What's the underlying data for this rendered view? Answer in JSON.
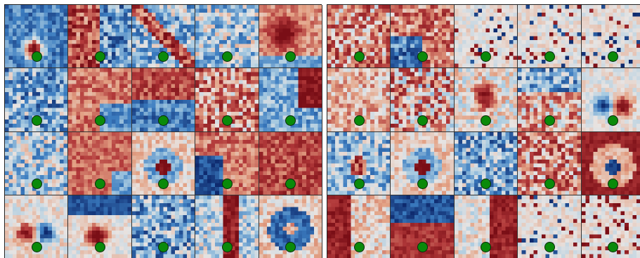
{
  "palette": {
    "deep_red": "#7a0e16",
    "red": "#b2393a",
    "light_red": "#e3a285",
    "neutral": "#e8e4e2",
    "light_blue": "#a9cbe1",
    "blue": "#3b7cc0",
    "deep_blue": "#0e2a6e",
    "marker_green": "#0a8a0a"
  },
  "panels": [
    {
      "id": "left",
      "rows": 4,
      "cols": 5,
      "tiles": [
        {
          "pattern": "blue-field-red-spot"
        },
        {
          "pattern": "mixed-red-blue"
        },
        {
          "pattern": "blue-noise-red-streak"
        },
        {
          "pattern": "light-blue-noise"
        },
        {
          "pattern": "red-blob"
        },
        {
          "pattern": "blue-noise"
        },
        {
          "pattern": "red-field-blue-streak"
        },
        {
          "pattern": "red-blue-band"
        },
        {
          "pattern": "red-noise"
        },
        {
          "pattern": "blue-red-mixed"
        },
        {
          "pattern": "light-blue-noise"
        },
        {
          "pattern": "red-field-blue-corner"
        },
        {
          "pattern": "center-red-blue-ring"
        },
        {
          "pattern": "blue-spot-red"
        },
        {
          "pattern": "red-field"
        },
        {
          "pattern": "red-spot-blue"
        },
        {
          "pattern": "blue-top-red-center"
        },
        {
          "pattern": "blue-noise"
        },
        {
          "pattern": "red-streak-blue"
        },
        {
          "pattern": "blue-ring"
        }
      ]
    },
    {
      "id": "right",
      "rows": 4,
      "cols": 5,
      "tiles": [
        {
          "pattern": "red-noise"
        },
        {
          "pattern": "red-blue-noise"
        },
        {
          "pattern": "sparse-noise"
        },
        {
          "pattern": "sparse-noise"
        },
        {
          "pattern": "sparse-noise"
        },
        {
          "pattern": "light-red-noise"
        },
        {
          "pattern": "red-noise-dots"
        },
        {
          "pattern": "red-center-noise"
        },
        {
          "pattern": "blue-red-noise"
        },
        {
          "pattern": "blue-red-center"
        },
        {
          "pattern": "blue-red-ring"
        },
        {
          "pattern": "center-red-blue-ring"
        },
        {
          "pattern": "blue-noise"
        },
        {
          "pattern": "red-noise"
        },
        {
          "pattern": "red-ring-blue-center"
        },
        {
          "pattern": "red-left"
        },
        {
          "pattern": "blue-top-red-bottom"
        },
        {
          "pattern": "red-right"
        },
        {
          "pattern": "sparse-noise"
        },
        {
          "pattern": "sparse-noise-red"
        }
      ]
    }
  ]
}
